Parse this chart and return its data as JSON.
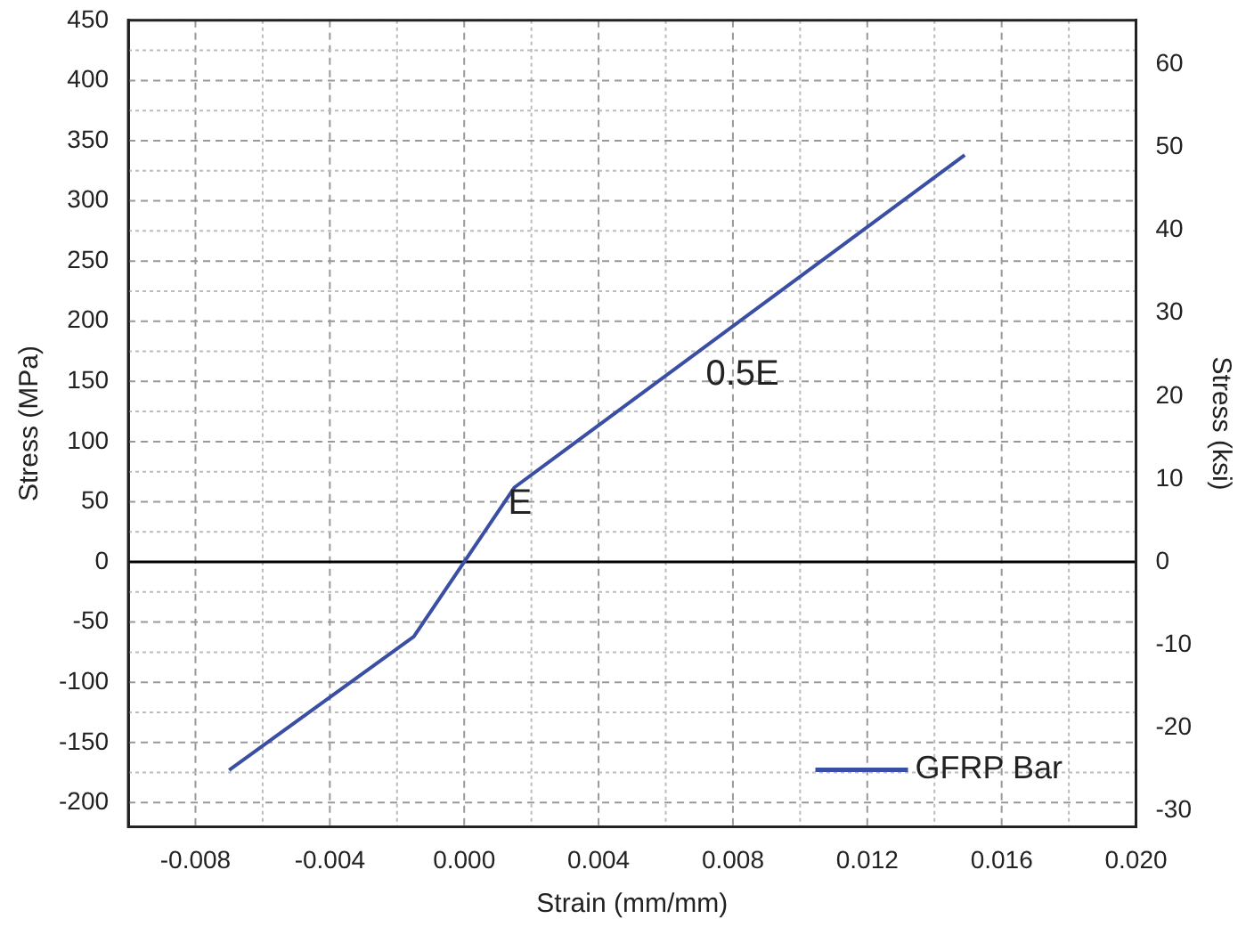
{
  "chart_data": {
    "type": "line",
    "xlabel": "Strain (mm/mm)",
    "ylabel": "Stress (MPa)",
    "y2label": "Stress (ksi)",
    "xlim": [
      -0.01,
      0.02
    ],
    "xticks": [
      -0.008,
      -0.004,
      {
        "value": 0,
        "label": "0.000"
      },
      0.004,
      0.008,
      0.012,
      0.016,
      {
        "value": 0.02,
        "label": "0.020"
      }
    ],
    "ylim": [
      -220,
      450
    ],
    "yticks": [
      -200,
      -150,
      -100,
      -50,
      0,
      50,
      100,
      150,
      200,
      250,
      300,
      350,
      400,
      450
    ],
    "y2lim": [
      -31.9,
      65.3
    ],
    "y2ticks": [
      -30,
      -20,
      -10,
      0,
      10,
      20,
      30,
      40,
      50,
      60
    ],
    "series": [
      {
        "name": "GFRP Bar",
        "color": "#3a4fa3",
        "x": [
          -0.007,
          -0.0015,
          0.0015,
          0.0149
        ],
        "values": [
          -173,
          -62,
          62,
          338
        ]
      }
    ],
    "ref_lines": [
      {
        "axis": "y",
        "value": 0,
        "color": "#000000"
      }
    ],
    "annotations": [
      "E",
      "0.5E"
    ],
    "grid": true,
    "legend": "bottom right",
    "marker": "none",
    "line_style": "solid"
  }
}
